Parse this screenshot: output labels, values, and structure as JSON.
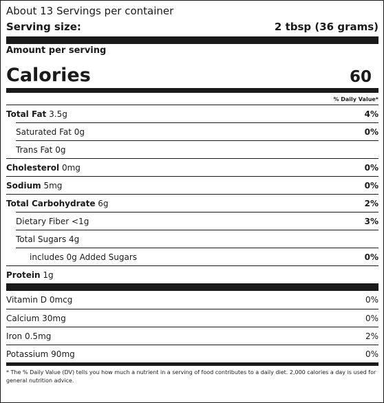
{
  "servings_per_container": "About 13 Servings per container",
  "serving_size": {
    "label": "Serving size:",
    "value": "2 tbsp (36 grams)"
  },
  "amount_per_serving": "Amount per serving",
  "calories": {
    "label": "Calories",
    "value": "60"
  },
  "dv_header": "% Daily Value*",
  "nutrients": [
    {
      "name": "Total Fat",
      "amount": "3.5g",
      "dv": "4%"
    },
    {
      "name": "Saturated Fat",
      "amount": "0g",
      "dv": "0%"
    },
    {
      "name": "Trans Fat",
      "amount": "0g",
      "dv": ""
    },
    {
      "name": "Cholesterol",
      "amount": "0mg",
      "dv": "0%"
    },
    {
      "name": "Sodium",
      "amount": "5mg",
      "dv": "0%"
    },
    {
      "name": "Total Carbohydrate",
      "amount": "6g",
      "dv": "2%"
    },
    {
      "name": "Dietary Fiber",
      "amount": "<1g",
      "dv": "3%"
    },
    {
      "name": "Total Sugars",
      "amount": "4g",
      "dv": ""
    },
    {
      "name": "includes 0g Added Sugars",
      "amount": "",
      "dv": "0%"
    },
    {
      "name": "Protein",
      "amount": "1g",
      "dv": ""
    }
  ],
  "vitamins": [
    {
      "name": "Vitamin D",
      "amount": "0mcg",
      "dv": "0%"
    },
    {
      "name": "Calcium",
      "amount": "30mg",
      "dv": "0%"
    },
    {
      "name": "Iron",
      "amount": "0.5mg",
      "dv": "2%"
    },
    {
      "name": "Potassium",
      "amount": "90mg",
      "dv": "0%"
    }
  ],
  "footnote": "* The % Daily Value (DV) tells you how much a nutrient in a serving of food contributes to a daily diet. 2,000 calories a day is used for general nutrition advice."
}
